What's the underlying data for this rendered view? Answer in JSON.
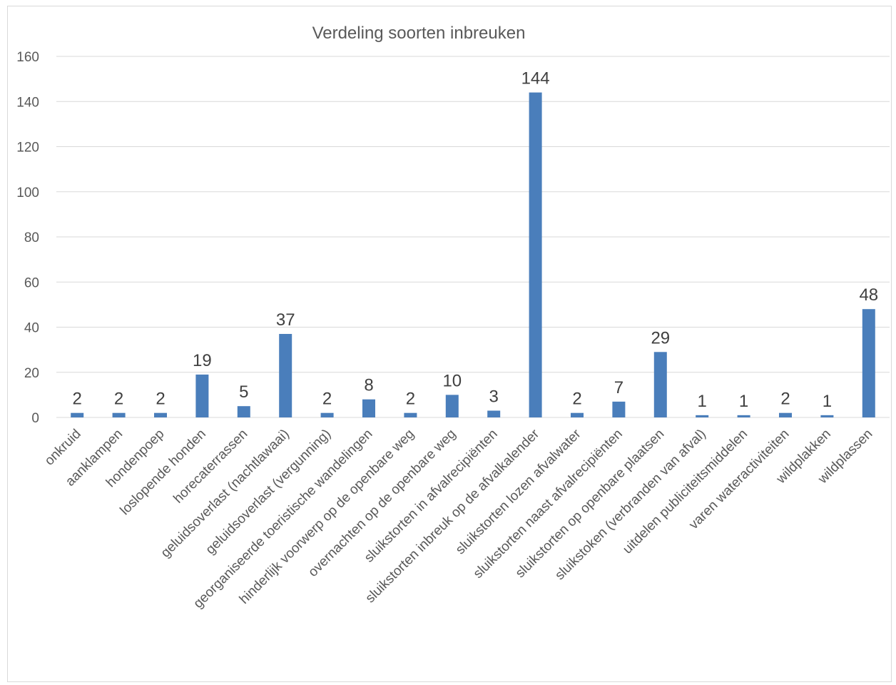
{
  "chart_data": {
    "type": "bar",
    "title": "Verdeling soorten inbreuken",
    "xlabel": "",
    "ylabel": "",
    "ylim": [
      0,
      160
    ],
    "yticks": [
      0,
      20,
      40,
      60,
      80,
      100,
      120,
      140,
      160
    ],
    "grid": true,
    "legend": "none",
    "colors": {
      "bar": "#4a7ebb",
      "grid": "#d9d9d9",
      "axis_text": "#595959",
      "label_text": "#404040"
    },
    "categories": [
      "onkruid",
      "aanklampen",
      "hondenpoep",
      "loslopende honden",
      "horecaterrassen",
      "geluidsoverlast (nachtlawaai)",
      "geluidsoverlast (vergunning)",
      "georganiseerde toeristische wandelingen",
      "hinderlijk voorwerp op de openbare weg",
      "overnachten op de openbare weg",
      "sluikstorten in afvalrecipiënten",
      "sluikstorten inbreuk op de afvalkalender",
      "sluikstorten lozen afvalwater",
      "sluikstorten naast afvalrecipiënten",
      "sluikstorten op openbare plaatsen",
      "sluikstoken (verbranden van afval)",
      "uitdelen publiciteitsmiddelen",
      "varen wateractiviteiten",
      "wildplakken",
      "wildplassen"
    ],
    "values": [
      2,
      2,
      2,
      19,
      5,
      37,
      2,
      8,
      2,
      10,
      3,
      144,
      2,
      7,
      29,
      1,
      1,
      2,
      1,
      48
    ]
  }
}
